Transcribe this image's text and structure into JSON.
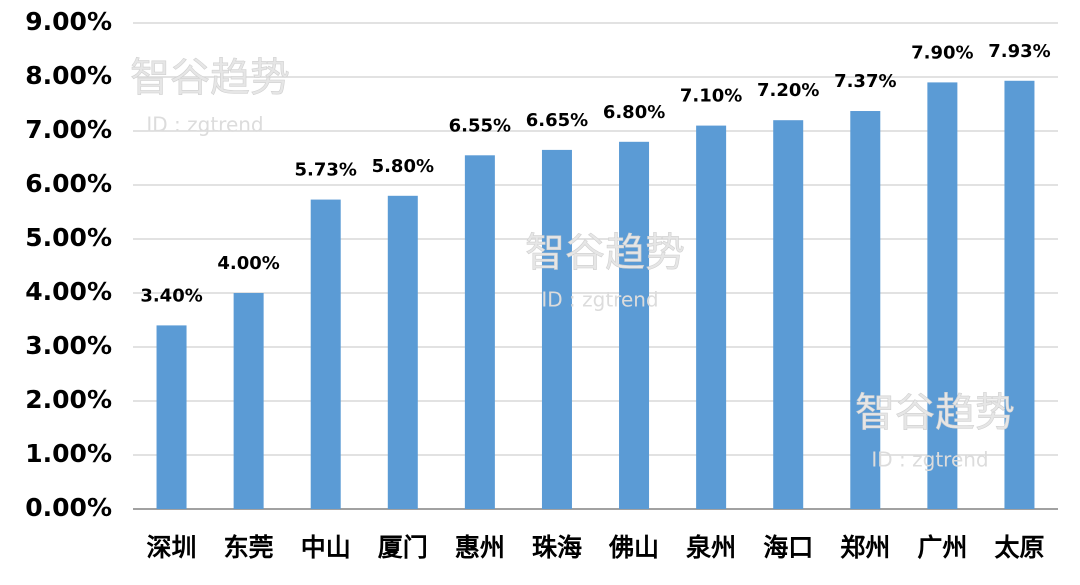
{
  "chart_data": {
    "type": "bar",
    "categories": [
      "深圳",
      "东莞",
      "中山",
      "厦门",
      "惠州",
      "珠海",
      "佛山",
      "泉州",
      "海口",
      "郑州",
      "广州",
      "太原"
    ],
    "values": [
      3.4,
      4,
      5.73,
      5.8,
      6.55,
      6.65,
      6.8,
      7.1,
      7.2,
      7.37,
      7.9,
      7.93
    ],
    "value_labels": [
      "3.40%",
      "4.00%",
      "5.73%",
      "5.80%",
      "6.55%",
      "6.65%",
      "6.80%",
      "7.10%",
      "7.20%",
      "7.37%",
      "7.90%",
      "7.93%"
    ],
    "color": "#5b9bd5",
    "ylim": [
      0,
      9
    ],
    "yticks": [
      {
        "value": 0,
        "label": "0.00%"
      },
      {
        "value": 1,
        "label": "1.00%"
      },
      {
        "value": 2,
        "label": "2.00%"
      },
      {
        "value": 3,
        "label": "3.00%"
      },
      {
        "value": 4,
        "label": "4.00%"
      },
      {
        "value": 5,
        "label": "5.00%"
      },
      {
        "value": 6,
        "label": "6.00%"
      },
      {
        "value": 7,
        "label": "7.00%"
      },
      {
        "value": 8,
        "label": "8.00%"
      },
      {
        "value": 9,
        "label": "9.00%"
      }
    ],
    "grid": true,
    "watermarks": [
      {
        "title": "智谷趋势",
        "id": "ID : zgtrend"
      },
      {
        "title": "智谷趋势",
        "id": "ID : zgtrend"
      },
      {
        "title": "智谷趋势",
        "id": "ID : zgtrend"
      }
    ]
  }
}
